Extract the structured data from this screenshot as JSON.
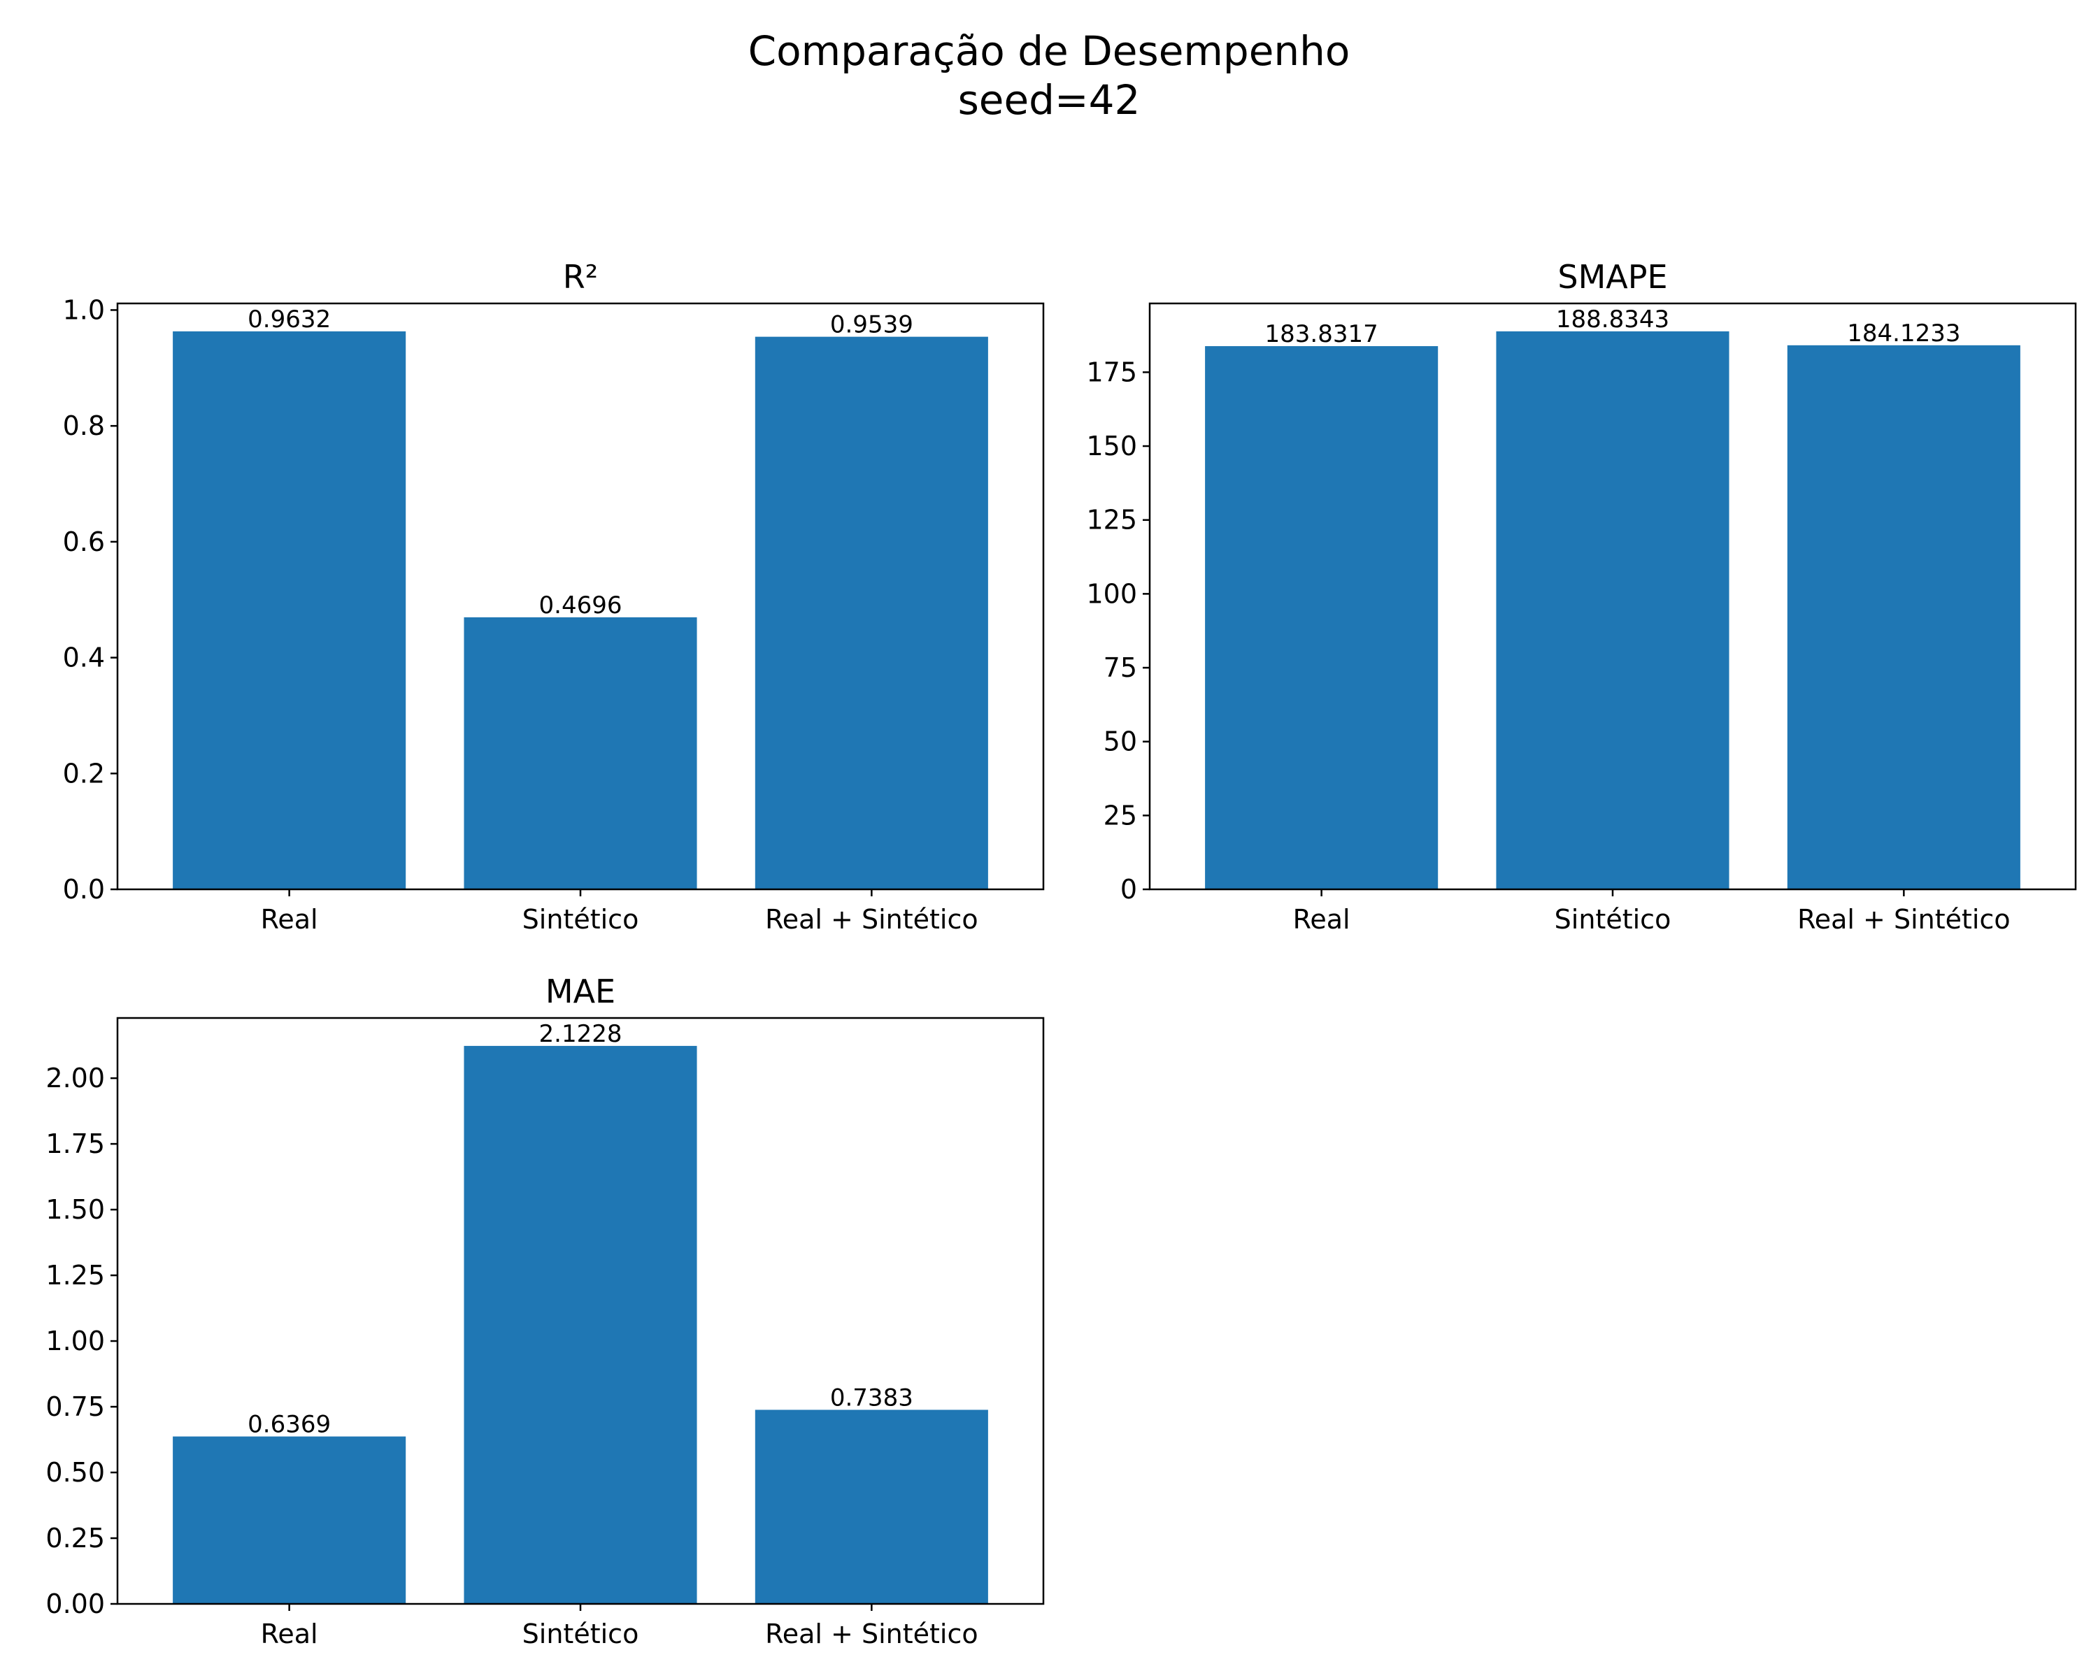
{
  "figure": {
    "title": "Comparação de Desempenho",
    "subtitle": "seed=42"
  },
  "colors": {
    "bar": "#1f77b4",
    "axis": "#000000",
    "background": "#ffffff"
  },
  "chart_data": [
    {
      "type": "bar",
      "title": "R²",
      "categories": [
        "Real",
        "Sintético",
        "Real + Sintético"
      ],
      "values": [
        0.9632,
        0.4696,
        0.9539
      ],
      "value_labels": [
        "0.9632",
        "0.4696",
        "0.9539"
      ],
      "ylim": [
        0,
        1.0114
      ],
      "yticks": [
        0.0,
        0.2,
        0.4,
        0.6,
        0.8,
        1.0
      ],
      "ytick_labels": [
        "0.0",
        "0.2",
        "0.4",
        "0.6",
        "0.8",
        "1.0"
      ],
      "xlabel": "",
      "ylabel": "",
      "grid": false
    },
    {
      "type": "bar",
      "title": "SMAPE",
      "categories": [
        "Real",
        "Sintético",
        "Real + Sintético"
      ],
      "values": [
        183.8317,
        188.8343,
        184.1233
      ],
      "value_labels": [
        "183.8317",
        "188.8343",
        "184.1233"
      ],
      "ylim": [
        0,
        198.28
      ],
      "yticks": [
        0,
        25,
        50,
        75,
        100,
        125,
        150,
        175
      ],
      "ytick_labels": [
        "0",
        "25",
        "50",
        "75",
        "100",
        "125",
        "150",
        "175"
      ],
      "xlabel": "",
      "ylabel": "",
      "grid": false
    },
    {
      "type": "bar",
      "title": "MAE",
      "categories": [
        "Real",
        "Sintético",
        "Real + Sintético"
      ],
      "values": [
        0.6369,
        2.1228,
        0.7383
      ],
      "value_labels": [
        "0.6369",
        "2.1228",
        "0.7383"
      ],
      "ylim": [
        0,
        2.229
      ],
      "yticks": [
        0.0,
        0.25,
        0.5,
        0.75,
        1.0,
        1.25,
        1.5,
        1.75,
        2.0
      ],
      "ytick_labels": [
        "0.00",
        "0.25",
        "0.50",
        "0.75",
        "1.00",
        "1.25",
        "1.50",
        "1.75",
        "2.00"
      ],
      "xlabel": "",
      "ylabel": "",
      "grid": false
    }
  ]
}
